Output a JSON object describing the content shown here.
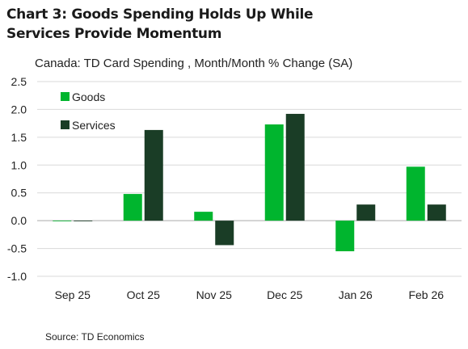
{
  "title": "Chart 3: Goods Spending Holds Up While Services Provide Momentum",
  "title_lines": [
    "Chart 3: Goods Spending Holds Up While",
    "Services Provide Momentum"
  ],
  "subtitle": "Canada: TD Card Spending , Month/Month % Change (SA)",
  "source": "Source: TD Economics",
  "chart_data": {
    "type": "bar",
    "categories": [
      "Sep 25",
      "Oct 25",
      "Nov 25",
      "Dec 25",
      "Jan 26",
      "Feb 26"
    ],
    "series": [
      {
        "name": "Goods",
        "color": "#00b52e",
        "values": [
          0.0,
          0.48,
          0.16,
          1.73,
          -0.55,
          0.97
        ]
      },
      {
        "name": "Services",
        "color": "#1a3d26",
        "values": [
          0.0,
          1.63,
          -0.44,
          1.92,
          0.29,
          0.29
        ]
      }
    ],
    "ylim": [
      -1.0,
      2.5
    ],
    "yticks": [
      2.5,
      2.0,
      1.5,
      1.0,
      0.5,
      0.0,
      -0.5,
      -1.0
    ],
    "ytick_labels": [
      "2.5",
      "2.0",
      "1.5",
      "1.0",
      "0.5",
      "0.0",
      "-0.5",
      "-1.0"
    ],
    "grid": true,
    "legend_position": "top-left",
    "xlabel": "",
    "ylabel": ""
  }
}
